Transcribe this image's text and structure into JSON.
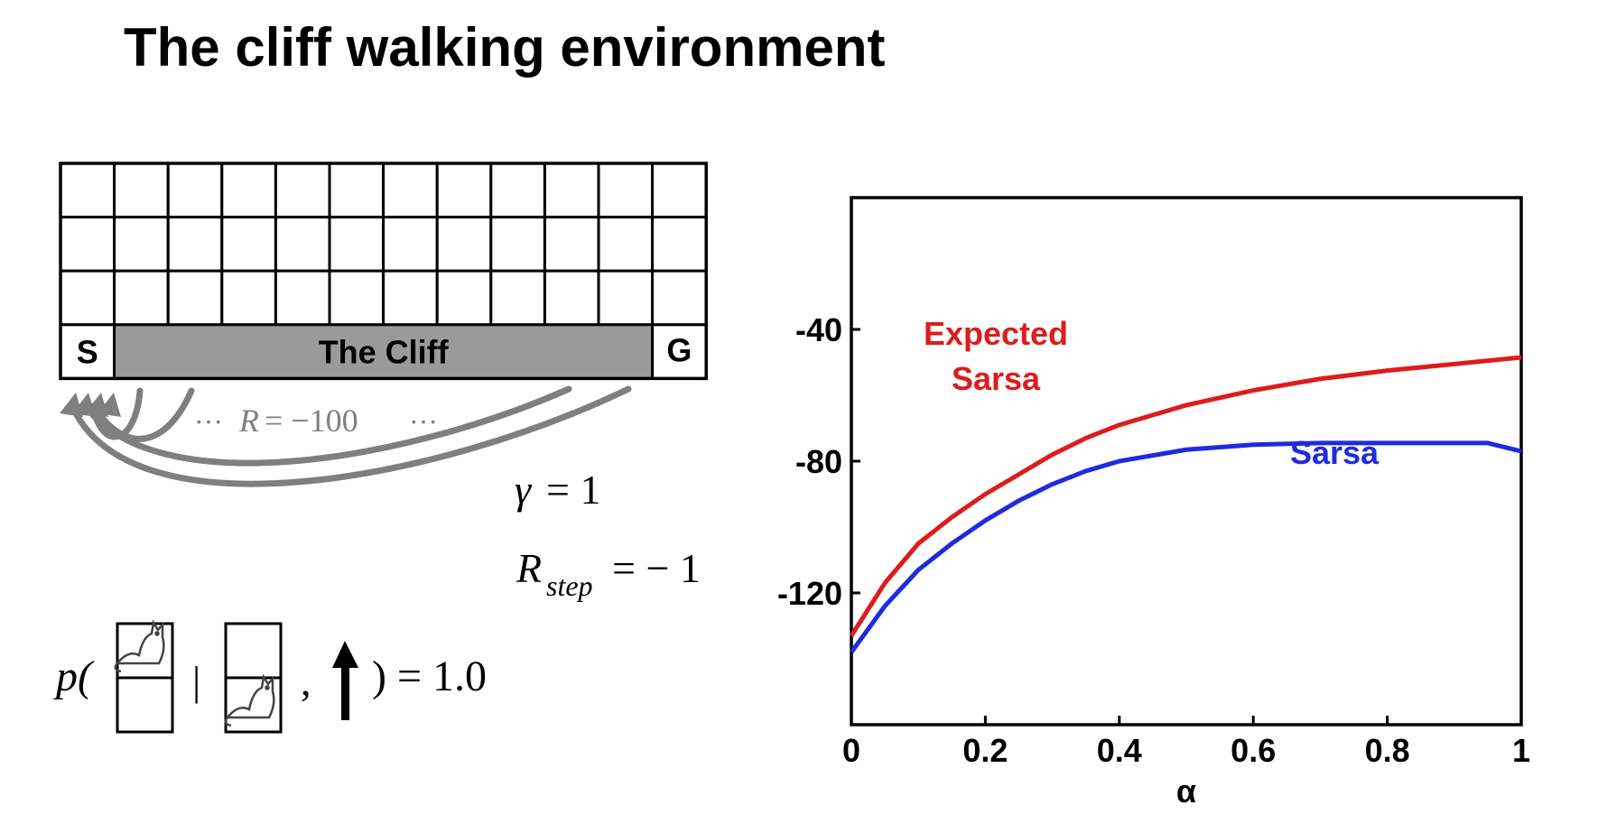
{
  "slide": {
    "title": "The cliff walking environment"
  },
  "gridworld": {
    "rows": 4,
    "cols": 12,
    "start_label": "S",
    "goal_label": "G",
    "cliff_label": "The Cliff",
    "cliff_color": "#9a9a9a",
    "reward_label_dots_left": "···",
    "reward_label_R": "R",
    "reward_label_eq": "= −100",
    "reward_label_dots_right": "···",
    "arrow_color": "#7f7f7f"
  },
  "equations": {
    "gamma_symbol": "γ",
    "gamma_rhs": "= 1",
    "rstep_R": "R",
    "rstep_sub": "step",
    "rstep_rhs": "= − 1",
    "transition_p": "p(",
    "transition_bar": "|",
    "transition_comma": ",",
    "transition_close": ") = 1.0",
    "cat_icon": "cat-icon",
    "up_arrow_icon": "up-arrow-icon"
  },
  "chart_data": {
    "type": "line",
    "title": "",
    "xlabel": "α",
    "ylabel": "",
    "xlim": [
      0,
      1
    ],
    "ylim": [
      -160,
      0
    ],
    "xticks": [
      0,
      0.2,
      0.4,
      0.6,
      0.8,
      1
    ],
    "xtick_labels": [
      "0",
      "0.2",
      "0.4",
      "0.6",
      "0.8",
      "1"
    ],
    "yticks": [
      -40,
      -80,
      -120
    ],
    "ytick_labels": [
      "-40",
      "-80",
      "-120"
    ],
    "grid": false,
    "series": [
      {
        "name": "Expected Sarsa",
        "label_lines": [
          "Expected",
          "Sarsa"
        ],
        "color": "#dd1c1c",
        "x": [
          0,
          0.05,
          0.1,
          0.15,
          0.2,
          0.25,
          0.3,
          0.35,
          0.4,
          0.5,
          0.6,
          0.7,
          0.8,
          0.9,
          1.0
        ],
        "y": [
          -133,
          -117,
          -105,
          -97,
          -90,
          -84,
          -78,
          -73,
          -69,
          -63,
          -58.5,
          -55,
          -52.5,
          -50.5,
          -48.5
        ]
      },
      {
        "name": "Sarsa",
        "label_lines": [
          "Sarsa"
        ],
        "color": "#1f2be0",
        "x": [
          0,
          0.05,
          0.1,
          0.15,
          0.2,
          0.25,
          0.3,
          0.35,
          0.4,
          0.5,
          0.6,
          0.7,
          0.8,
          0.9,
          0.95,
          1.0
        ],
        "y": [
          -138,
          -124,
          -113,
          -105,
          -98,
          -92,
          -87,
          -83,
          -80,
          -76.5,
          -75,
          -74.5,
          -74.5,
          -74.5,
          -74.5,
          -77
        ]
      }
    ]
  }
}
